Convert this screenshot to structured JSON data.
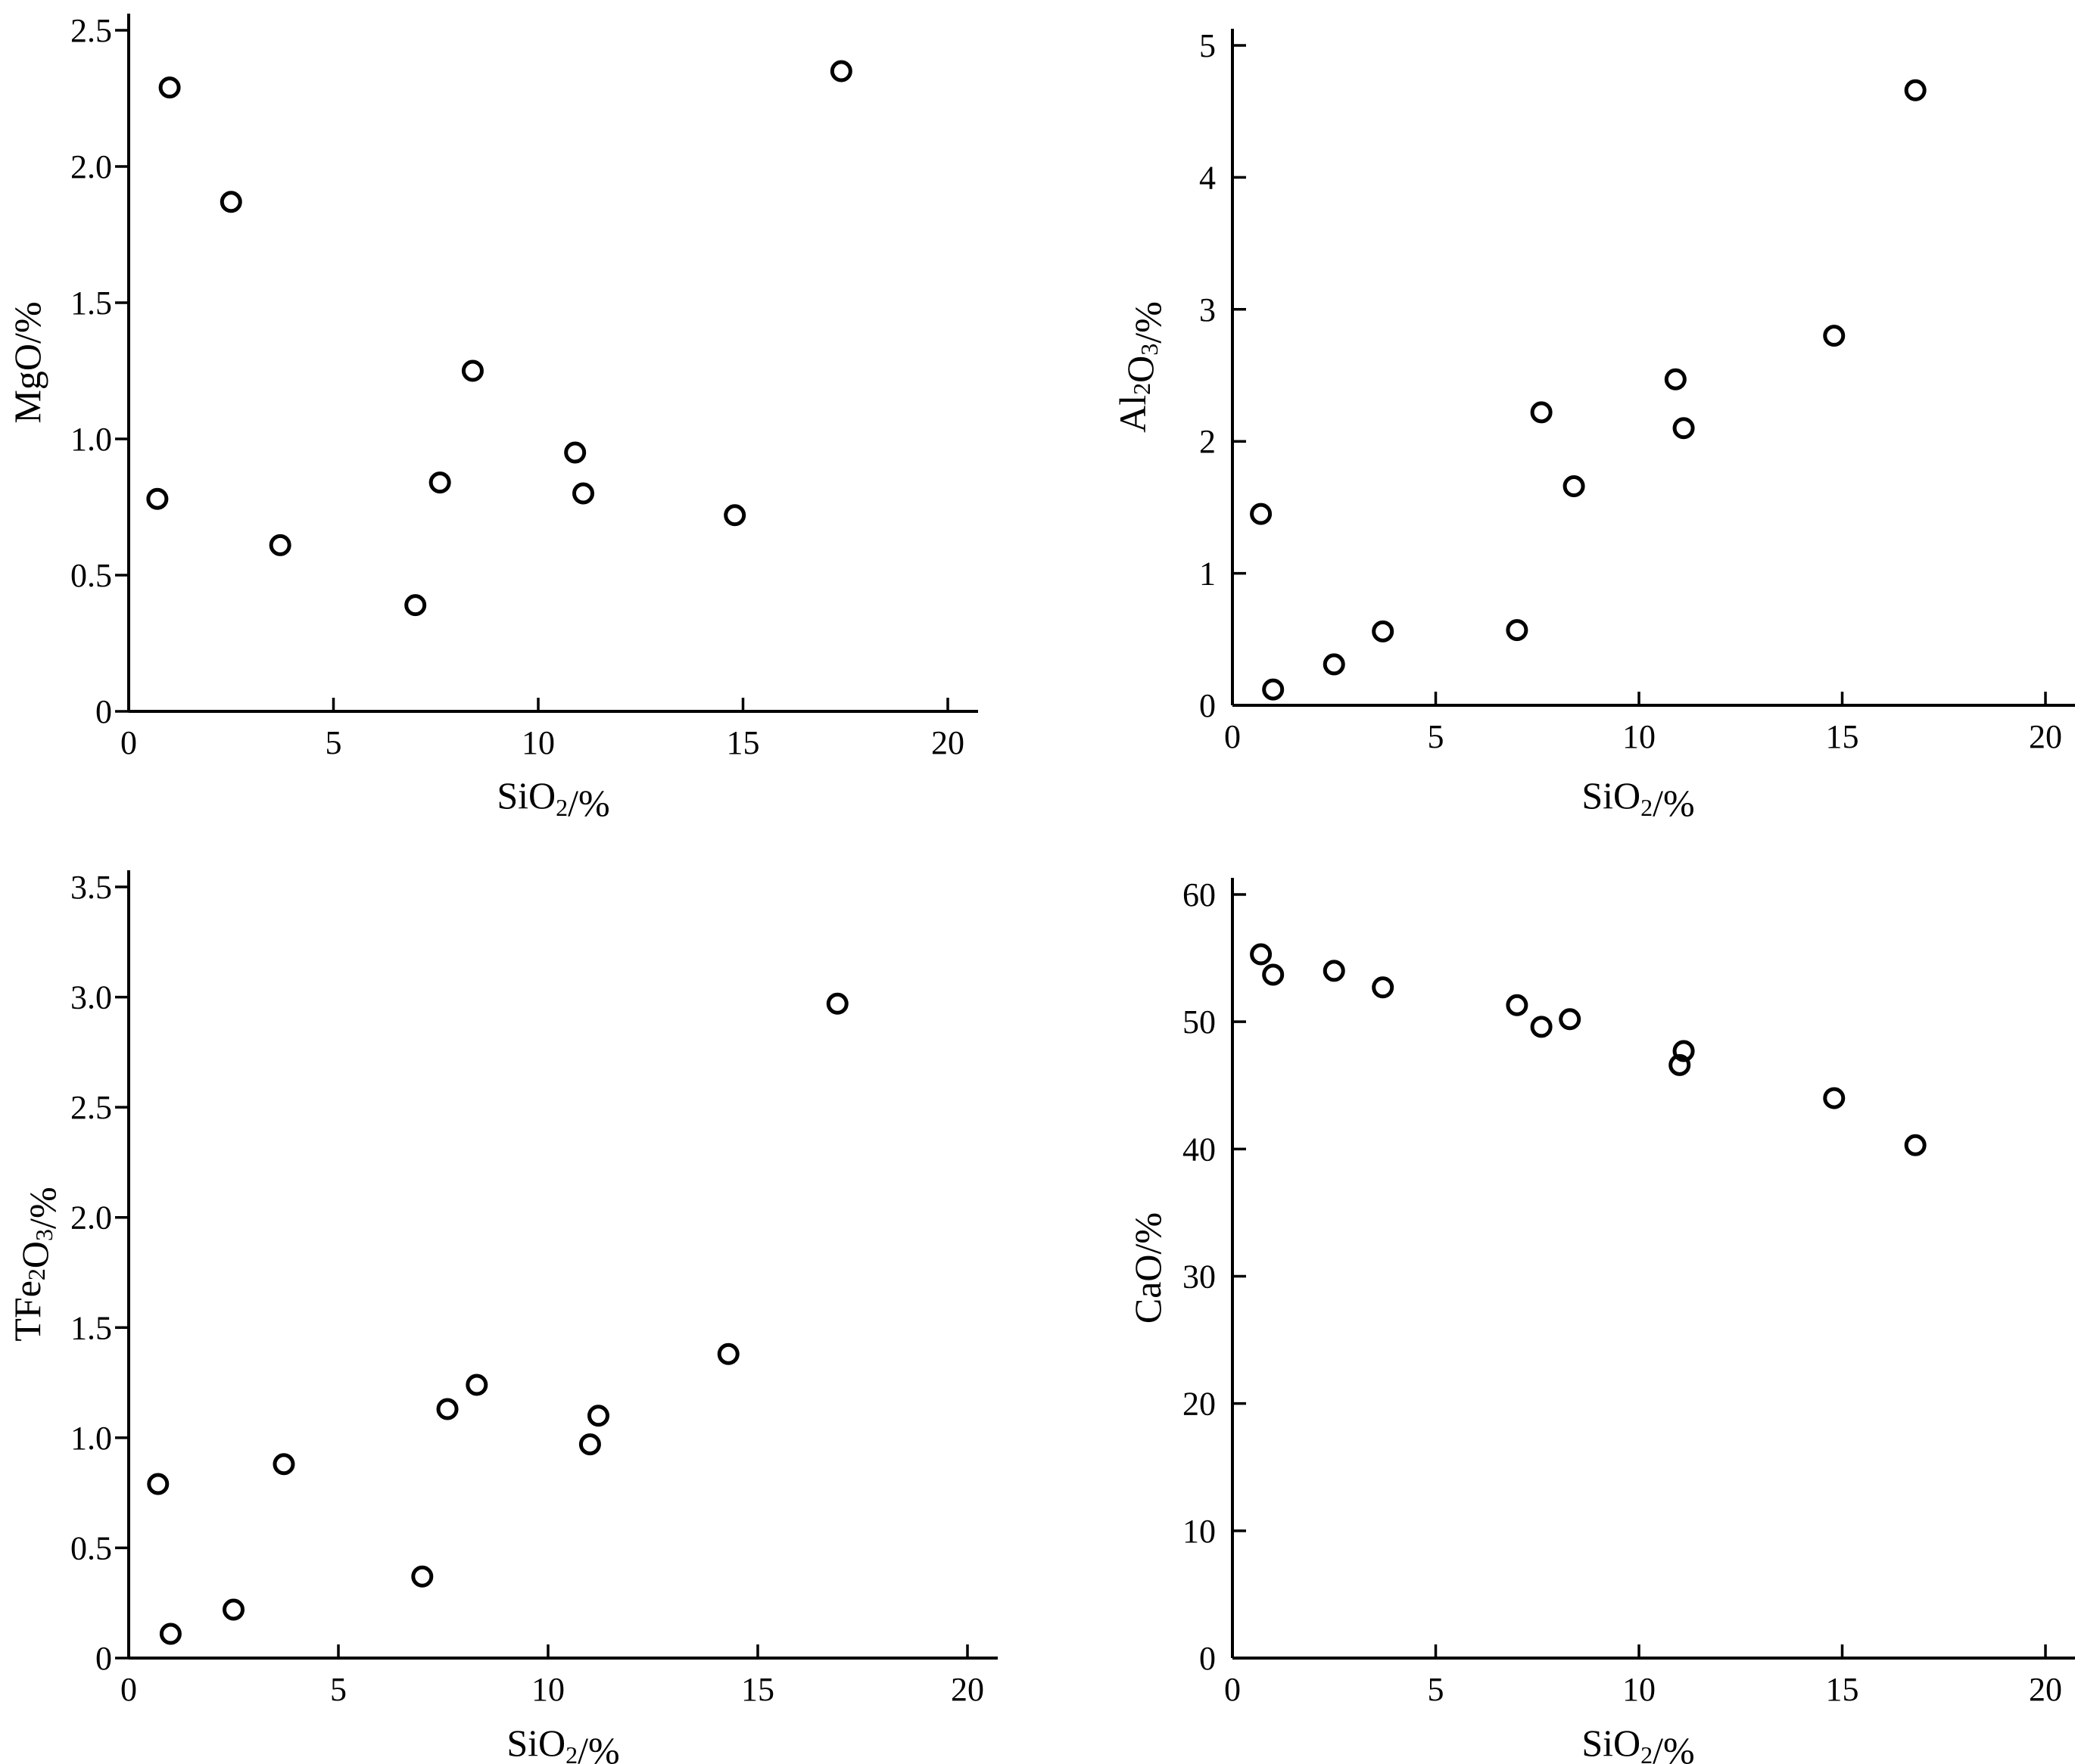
{
  "chart_data": [
    {
      "type": "scatter",
      "xlabel": "SiO₂/%",
      "ylabel": "MgO/%",
      "xlim": [
        0,
        20
      ],
      "ylim": [
        0,
        2.5
      ],
      "xticks": [
        0,
        5,
        10,
        15,
        20
      ],
      "xtick_labels": [
        "0",
        "5",
        "10",
        "15",
        "20"
      ],
      "yticks": [
        0,
        0.5,
        1.0,
        1.5,
        2.0,
        2.5
      ],
      "ytick_labels": [
        "0",
        "0.5",
        "1.0",
        "1.5",
        "2.0",
        "2.5"
      ],
      "grid": false,
      "points": [
        {
          "x": 0.7,
          "y": 0.78
        },
        {
          "x": 1.0,
          "y": 2.29
        },
        {
          "x": 2.5,
          "y": 1.87
        },
        {
          "x": 3.7,
          "y": 0.61
        },
        {
          "x": 7.0,
          "y": 0.39
        },
        {
          "x": 7.6,
          "y": 0.84
        },
        {
          "x": 8.4,
          "y": 1.25
        },
        {
          "x": 10.9,
          "y": 0.95
        },
        {
          "x": 11.1,
          "y": 0.8
        },
        {
          "x": 14.8,
          "y": 0.72
        },
        {
          "x": 17.4,
          "y": 2.35
        }
      ]
    },
    {
      "type": "scatter",
      "xlabel": "SiO₂/%",
      "ylabel": "Al₂O₃/%",
      "xlim": [
        0,
        20
      ],
      "ylim": [
        0,
        5
      ],
      "xticks": [
        0,
        5,
        10,
        15,
        20
      ],
      "xtick_labels": [
        "0",
        "5",
        "10",
        "15",
        "20"
      ],
      "yticks": [
        0,
        1,
        2,
        3,
        4,
        5
      ],
      "ytick_labels": [
        "0",
        "1",
        "2",
        "3",
        "4",
        "5"
      ],
      "grid": false,
      "points": [
        {
          "x": 0.7,
          "y": 1.45
        },
        {
          "x": 1.0,
          "y": 0.12
        },
        {
          "x": 2.5,
          "y": 0.31
        },
        {
          "x": 3.7,
          "y": 0.56
        },
        {
          "x": 7.0,
          "y": 0.57
        },
        {
          "x": 7.6,
          "y": 2.22
        },
        {
          "x": 8.4,
          "y": 1.66
        },
        {
          "x": 10.9,
          "y": 2.47
        },
        {
          "x": 11.1,
          "y": 2.1
        },
        {
          "x": 14.8,
          "y": 2.8
        },
        {
          "x": 16.8,
          "y": 4.66
        }
      ]
    },
    {
      "type": "scatter",
      "xlabel": "SiO₂/%",
      "ylabel": "TFe₂O₃/%",
      "xlim": [
        0,
        20
      ],
      "ylim": [
        0,
        3.5
      ],
      "xticks": [
        0,
        5,
        10,
        15,
        20
      ],
      "xtick_labels": [
        "0",
        "5",
        "10",
        "15",
        "20"
      ],
      "yticks": [
        0,
        0.5,
        1.0,
        1.5,
        2.0,
        2.5,
        3.0,
        3.5
      ],
      "ytick_labels": [
        "0",
        "0.5",
        "1.0",
        "1.5",
        "2.0",
        "2.5",
        "3.0",
        "3.5"
      ],
      "grid": false,
      "points": [
        {
          "x": 0.7,
          "y": 0.79
        },
        {
          "x": 1.0,
          "y": 0.11
        },
        {
          "x": 2.5,
          "y": 0.22
        },
        {
          "x": 3.7,
          "y": 0.88
        },
        {
          "x": 7.0,
          "y": 0.37
        },
        {
          "x": 7.6,
          "y": 1.13
        },
        {
          "x": 8.3,
          "y": 1.24
        },
        {
          "x": 11.0,
          "y": 0.97
        },
        {
          "x": 11.2,
          "y": 1.1
        },
        {
          "x": 14.3,
          "y": 1.38
        },
        {
          "x": 16.9,
          "y": 2.97
        }
      ]
    },
    {
      "type": "scatter",
      "xlabel": "SiO₂/%",
      "ylabel": "CaO/%",
      "xlim": [
        0,
        20
      ],
      "ylim": [
        0,
        60
      ],
      "xticks": [
        0,
        5,
        10,
        15,
        20
      ],
      "xtick_labels": [
        "0",
        "5",
        "10",
        "15",
        "20"
      ],
      "yticks": [
        0,
        10,
        20,
        30,
        40,
        50,
        60
      ],
      "ytick_labels": [
        "0",
        "10",
        "20",
        "30",
        "40",
        "50",
        "60"
      ],
      "grid": false,
      "points": [
        {
          "x": 0.7,
          "y": 55.3
        },
        {
          "x": 1.0,
          "y": 53.7
        },
        {
          "x": 2.5,
          "y": 54.0
        },
        {
          "x": 3.7,
          "y": 52.7
        },
        {
          "x": 7.0,
          "y": 51.3
        },
        {
          "x": 7.6,
          "y": 49.6
        },
        {
          "x": 8.3,
          "y": 50.2
        },
        {
          "x": 11.0,
          "y": 46.6
        },
        {
          "x": 11.1,
          "y": 47.7
        },
        {
          "x": 14.8,
          "y": 44.0
        },
        {
          "x": 16.8,
          "y": 40.3
        }
      ]
    }
  ]
}
